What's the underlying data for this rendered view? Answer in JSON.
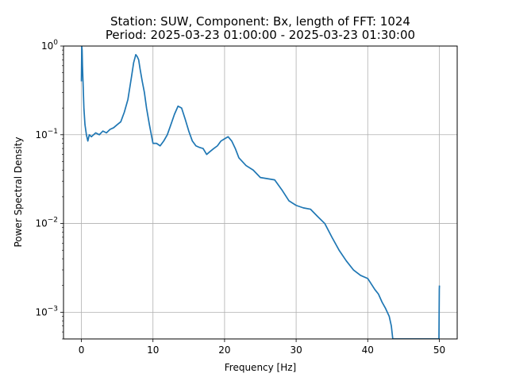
{
  "chart_data": {
    "type": "line",
    "title_line1": "Station: SUW, Component: Bx, length of FFT: 1024",
    "title_line2": "Period: 2025-03-23 01:00:00 - 2025-03-23 01:30:00",
    "xlabel": "Frequency [Hz]",
    "ylabel": "Power Spectral Density",
    "xlim": [
      -2.5,
      52.5
    ],
    "ylim": [
      0.0005,
      1
    ],
    "yscale": "log",
    "grid": true,
    "line_color": "#1f77b4",
    "x_ticks": [
      {
        "value": 0,
        "label": "0"
      },
      {
        "value": 10,
        "label": "10"
      },
      {
        "value": 20,
        "label": "20"
      },
      {
        "value": 30,
        "label": "30"
      },
      {
        "value": 40,
        "label": "40"
      },
      {
        "value": 50,
        "label": "50"
      }
    ],
    "y_ticks": [
      {
        "value": 0.001,
        "base": "10",
        "exp": "−3"
      },
      {
        "value": 0.01,
        "base": "10",
        "exp": "−2"
      },
      {
        "value": 0.1,
        "base": "10",
        "exp": "−1"
      },
      {
        "value": 1,
        "base": "10",
        "exp": "0"
      }
    ],
    "series": [
      {
        "x": [
          0.0,
          0.05,
          0.1,
          0.15,
          0.25,
          0.35,
          0.5,
          0.7,
          0.9,
          1.1,
          1.4,
          1.7,
          2.0,
          2.5,
          3.0,
          3.5,
          4.0,
          4.5,
          5.0,
          5.5,
          6.0,
          6.5,
          7.0,
          7.3,
          7.6,
          7.8,
          8.0,
          8.2,
          8.5,
          8.8,
          9.1,
          9.5,
          10.0,
          10.5,
          11.0,
          11.5,
          12.0,
          12.5,
          13.0,
          13.5,
          14.0,
          14.5,
          15.0,
          15.5,
          16.0,
          16.5,
          17.0,
          17.5,
          18.0,
          18.5,
          19.0,
          19.5,
          20.0,
          20.5,
          21.0,
          21.5,
          22.0,
          23.0,
          24.0,
          25.0,
          26.0,
          27.0,
          28.0,
          29.0,
          30.0,
          31.0,
          32.0,
          33.0,
          34.0,
          35.0,
          36.0,
          37.0,
          38.0,
          39.0,
          40.0,
          41.0,
          41.5,
          42.0,
          42.5,
          43.0,
          43.3,
          43.5,
          49.95,
          50.0,
          50.02
        ],
        "y": [
          0.4,
          1.0,
          0.9,
          0.6,
          0.35,
          0.2,
          0.13,
          0.1,
          0.085,
          0.1,
          0.095,
          0.1,
          0.105,
          0.1,
          0.11,
          0.105,
          0.115,
          0.12,
          0.13,
          0.14,
          0.18,
          0.25,
          0.45,
          0.65,
          0.8,
          0.76,
          0.7,
          0.55,
          0.4,
          0.3,
          0.2,
          0.13,
          0.08,
          0.08,
          0.075,
          0.085,
          0.1,
          0.13,
          0.17,
          0.21,
          0.2,
          0.15,
          0.11,
          0.085,
          0.075,
          0.072,
          0.07,
          0.06,
          0.065,
          0.07,
          0.075,
          0.085,
          0.09,
          0.095,
          0.085,
          0.07,
          0.055,
          0.045,
          0.04,
          0.033,
          0.032,
          0.031,
          0.024,
          0.018,
          0.016,
          0.015,
          0.0145,
          0.012,
          0.01,
          0.007,
          0.005,
          0.0038,
          0.003,
          0.0026,
          0.0024,
          0.0018,
          0.0016,
          0.0013,
          0.0011,
          0.0009,
          0.0007,
          0.0005,
          0.0005,
          0.0018,
          0.002
        ]
      }
    ]
  }
}
